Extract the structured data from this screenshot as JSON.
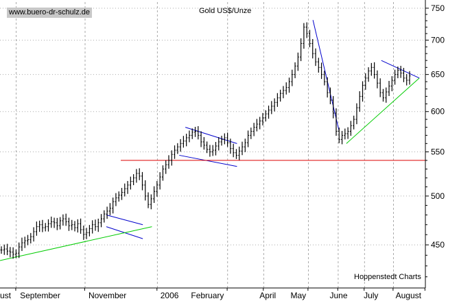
{
  "watermark": "www.buero-dr-schulz.de",
  "source": "Hoppenstedt Charts",
  "colors": {
    "background": "#ffffff",
    "price_bars": "#000000",
    "grid": "#aaaaaa",
    "trend_blue": "#0000cc",
    "trend_green": "#00cc00",
    "support_red": "#dd0000"
  },
  "chart_data": {
    "type": "bar",
    "title": "Gold US$/Unze",
    "xlabel": "",
    "ylabel": "",
    "y_scale": "log",
    "ylim": [
      410,
      760
    ],
    "y_ticks": [
      450,
      500,
      550,
      600,
      650,
      700,
      750
    ],
    "x_ticks": [
      "ust",
      "September",
      "November",
      "2006",
      "February",
      "April",
      "May",
      "June",
      "July",
      "August"
    ],
    "series": [
      {
        "values": [
          445,
          446,
          444,
          443,
          441,
          442,
          448,
          452,
          454,
          455,
          458,
          463,
          468,
          470,
          467,
          468,
          471,
          473,
          472,
          469,
          474,
          476,
          473,
          469,
          470,
          467,
          471,
          465,
          460,
          462,
          466,
          470,
          468,
          472,
          476,
          481,
          484,
          487,
          494,
          498,
          501,
          504,
          508,
          512,
          516,
          520,
          525,
          522,
          512,
          500,
          491,
          497,
          505,
          512,
          521,
          530,
          535,
          540,
          547,
          552,
          556,
          560,
          563,
          567,
          570,
          574,
          575,
          570,
          562,
          558,
          553,
          550,
          552,
          557,
          562,
          565,
          567,
          561,
          554,
          549,
          546,
          551,
          556,
          561,
          570,
          575,
          580,
          584,
          588,
          592,
          597,
          602,
          607,
          612,
          618,
          624,
          628,
          632,
          640,
          650,
          662,
          675,
          695,
          720,
          710,
          695,
          680,
          668,
          660,
          650,
          640,
          625,
          615,
          598,
          575,
          565,
          570,
          572,
          575,
          582,
          590,
          605,
          620,
          635,
          645,
          655,
          660,
          650,
          638,
          625,
          618,
          626,
          634,
          642,
          650,
          656,
          652,
          645,
          642,
          648
        ]
      }
    ],
    "annotations": [
      {
        "type": "channel",
        "upper": [
          [
            0.35,
            480
          ],
          [
            0.47,
            470
          ]
        ],
        "lower": [
          [
            0.35,
            468
          ],
          [
            0.47,
            456
          ]
        ]
      },
      {
        "type": "trendline",
        "points": [
          [
            0.0,
            435
          ],
          [
            0.5,
            468
          ]
        ]
      },
      {
        "type": "channel",
        "upper": [
          [
            0.61,
            580
          ],
          [
            0.78,
            560
          ]
        ],
        "lower": [
          [
            0.59,
            546
          ],
          [
            0.78,
            533
          ]
        ]
      },
      {
        "type": "support",
        "value": 540
      },
      {
        "type": "trendline",
        "points": [
          [
            1.03,
            731
          ],
          [
            1.115,
            577
          ]
        ]
      },
      {
        "type": "trendline",
        "points": [
          [
            1.14,
            560
          ],
          [
            1.38,
            645
          ]
        ]
      },
      {
        "type": "trendline",
        "points": [
          [
            1.255,
            670
          ],
          [
            1.38,
            645
          ]
        ]
      }
    ]
  }
}
